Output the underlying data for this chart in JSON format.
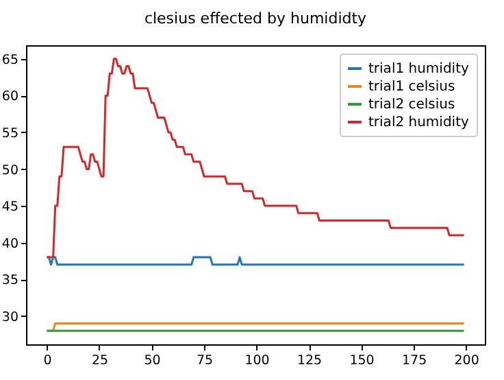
{
  "chart_data": {
    "type": "line",
    "title": "clesius effected by humididty",
    "xlim": [
      -9.95,
      208.95
    ],
    "xticks": [
      0,
      25,
      50,
      75,
      100,
      125,
      150,
      175,
      200
    ],
    "ylim": [
      26.15,
      66.85
    ],
    "yticks": [
      30,
      35,
      40,
      45,
      50,
      55,
      60,
      65
    ],
    "grid": false,
    "legend": "top right",
    "marker": "none",
    "line_style": "solid",
    "series": [
      {
        "name": "trial1 humidity",
        "color": "#1f77b4",
        "x": [
          0,
          1,
          2,
          3,
          4,
          5,
          69,
          70,
          78,
          79,
          91,
          92,
          93,
          199
        ],
        "values": [
          38,
          38,
          37,
          38,
          38,
          37,
          37,
          38,
          38,
          37,
          37,
          38,
          37,
          37
        ]
      },
      {
        "name": "trial1 celsius",
        "color": "#ff7f0e",
        "x": [
          0,
          3,
          4,
          199
        ],
        "values": [
          28,
          28,
          29,
          29
        ]
      },
      {
        "name": "trial2 celsius",
        "color": "#2ca02c",
        "x": [
          0,
          199
        ],
        "values": [
          28,
          28
        ]
      },
      {
        "name": "trial2 humidity",
        "color": "#d62728",
        "x": [
          0,
          3,
          4,
          5,
          6,
          7,
          8,
          15,
          16,
          17,
          18,
          19,
          20,
          21,
          22,
          23,
          24,
          25,
          26,
          27,
          28,
          29,
          30,
          31,
          32,
          33,
          34,
          35,
          36,
          37,
          38,
          39,
          40,
          41,
          42,
          48,
          49,
          50,
          51,
          52,
          53,
          56,
          57,
          58,
          59,
          60,
          61,
          62,
          65,
          66,
          69,
          70,
          73,
          74,
          75,
          85,
          86,
          93,
          94,
          98,
          99,
          103,
          104,
          119,
          120,
          129,
          130,
          163,
          164,
          191,
          192,
          199
        ],
        "values": [
          38,
          38,
          45,
          45,
          49,
          49,
          53,
          53,
          52,
          51,
          51,
          50,
          50,
          52,
          52,
          51,
          51,
          50,
          49,
          49,
          60,
          60,
          63,
          63,
          65,
          65,
          64,
          64,
          63,
          63,
          64,
          64,
          63,
          63,
          61,
          61,
          60,
          59,
          59,
          58,
          57,
          57,
          56,
          55,
          55,
          54,
          54,
          53,
          53,
          52,
          52,
          51,
          51,
          50,
          49,
          49,
          48,
          48,
          47,
          47,
          46,
          46,
          45,
          45,
          44,
          44,
          43,
          43,
          42,
          42,
          41,
          41
        ]
      }
    ]
  }
}
